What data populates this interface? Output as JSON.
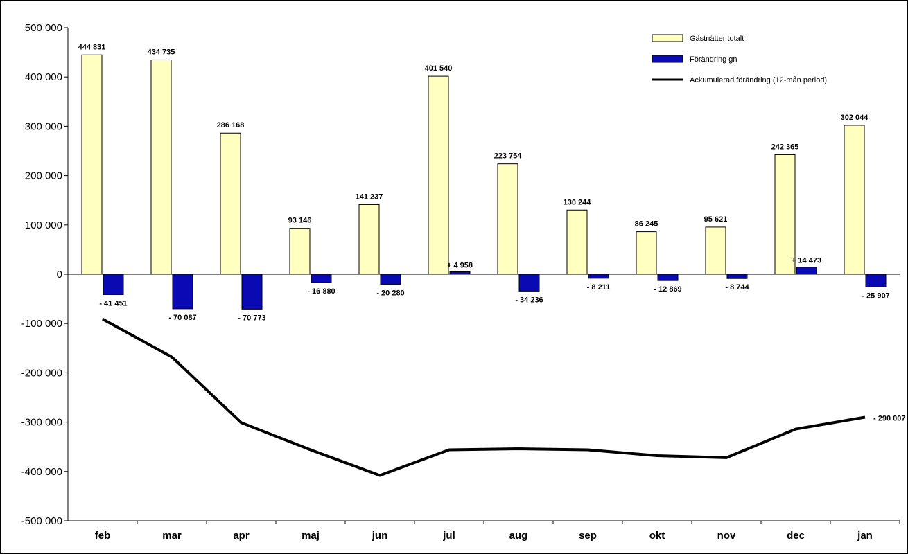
{
  "chart_data": {
    "type": "bar",
    "title": "",
    "xlabel": "",
    "ylabel": "",
    "categories": [
      "feb",
      "mar",
      "apr",
      "maj",
      "jun",
      "jul",
      "aug",
      "sep",
      "okt",
      "nov",
      "dec",
      "jan"
    ],
    "ylim": [
      -500000,
      500000
    ],
    "y_ticks": [
      "500 000",
      "400 000",
      "300 000",
      "200 000",
      "100 000",
      "0",
      "-100 000",
      "-200 000",
      "-300 000",
      "-400 000",
      "-500 000"
    ],
    "y_tick_values": [
      500000,
      400000,
      300000,
      200000,
      100000,
      0,
      -100000,
      -200000,
      -300000,
      -400000,
      -500000
    ],
    "grid": false,
    "legend_position": "top-right",
    "series": [
      {
        "name": "Gästnätter totalt",
        "kind": "bar",
        "color": "#ffffc0",
        "values": [
          444831,
          434735,
          286168,
          93146,
          141237,
          401540,
          223754,
          130244,
          86245,
          95621,
          242365,
          302044
        ],
        "labels": [
          "444 831",
          "434 735",
          "286 168",
          "93 146",
          "141 237",
          "401 540",
          "223 754",
          "130 244",
          "86 245",
          "95 621",
          "242 365",
          "302 044"
        ]
      },
      {
        "name": "Förändring gn",
        "kind": "bar",
        "color": "#0a0ab4",
        "values": [
          -41451,
          -70087,
          -70773,
          -16880,
          -20280,
          4958,
          -34236,
          -8211,
          -12869,
          -8744,
          14473,
          -25907
        ],
        "labels": [
          "- 41 451",
          "- 70 087",
          "- 70 773",
          "- 16 880",
          "- 20 280",
          "+ 4 958",
          "- 34 236",
          "- 8 211",
          "- 12 869",
          "- 8 744",
          "+ 14 473",
          "- 25 907"
        ]
      },
      {
        "name": "Ackumulerad förändring (12-mån.period)",
        "kind": "line",
        "color": "#000000",
        "values": [
          -91000,
          -168000,
          -301000,
          -356000,
          -408000,
          -356000,
          -354000,
          -356000,
          -368000,
          -372000,
          -314000,
          -290007
        ],
        "end_label": "- 290 007"
      }
    ]
  }
}
